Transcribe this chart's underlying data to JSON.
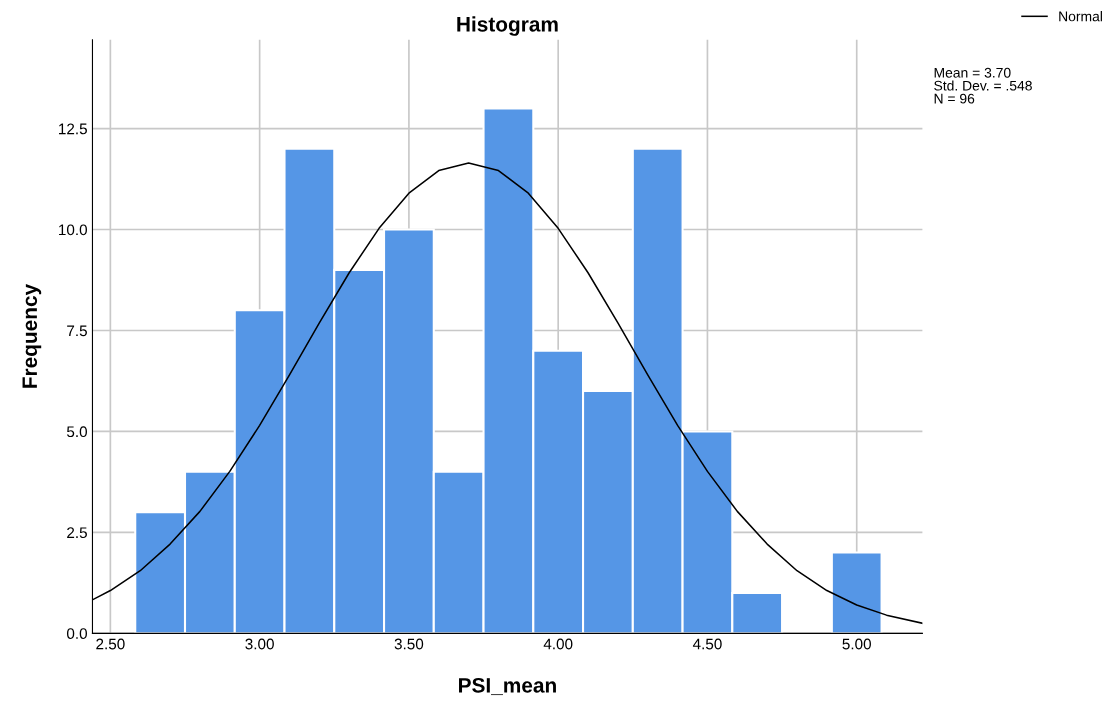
{
  "chart_data": {
    "type": "histogram",
    "title": "Histogram",
    "xlabel": "PSI_mean",
    "ylabel": "Frequency",
    "bins": [
      2.5833,
      2.75,
      2.9167,
      3.0833,
      3.25,
      3.4167,
      3.5833,
      3.75,
      3.9167,
      4.0833,
      4.25,
      4.4167,
      4.5833,
      4.75,
      4.9167,
      5.0833
    ],
    "values": [
      3,
      4,
      8,
      12,
      9,
      10,
      4,
      13,
      7,
      6,
      12,
      5,
      1,
      0,
      2
    ],
    "color": "#5596e6",
    "series": [
      {
        "name": "Normal",
        "type": "line",
        "color": "#000000",
        "x": [
          2.44,
          2.5,
          2.6,
          2.7,
          2.8,
          2.9,
          3.0,
          3.1,
          3.2,
          3.3,
          3.4,
          3.5,
          3.6,
          3.7,
          3.8,
          3.9,
          4.0,
          4.1,
          4.2,
          4.3,
          4.4,
          4.5,
          4.6,
          4.7,
          4.8,
          4.9,
          5.0,
          5.1,
          5.22
        ],
        "values": [
          0.83,
          1.06,
          1.55,
          2.21,
          3.02,
          4.01,
          5.15,
          6.4,
          7.69,
          8.93,
          10.03,
          10.9,
          11.46,
          11.65,
          11.46,
          10.9,
          10.03,
          8.93,
          7.69,
          6.4,
          5.15,
          4.01,
          3.02,
          2.21,
          1.55,
          1.06,
          0.7,
          0.45,
          0.25
        ]
      }
    ],
    "xlim": [
      2.44,
      5.22
    ],
    "ylim": [
      0,
      14.7
    ],
    "xticks": [
      {
        "value": 2.5,
        "label": "2.50"
      },
      {
        "value": 3.0,
        "label": "3.00"
      },
      {
        "value": 3.5,
        "label": "3.50"
      },
      {
        "value": 4.0,
        "label": "4.00"
      },
      {
        "value": 4.5,
        "label": "4.50"
      },
      {
        "value": 5.0,
        "label": "5.00"
      }
    ],
    "yticks": [
      {
        "value": 0,
        "label": "0.0"
      },
      {
        "value": 2.5,
        "label": "2.5"
      },
      {
        "value": 5,
        "label": "5.0"
      },
      {
        "value": 7.5,
        "label": "7.5"
      },
      {
        "value": 10,
        "label": "10.0"
      },
      {
        "value": 12.5,
        "label": "12.5"
      }
    ],
    "grid": true,
    "legend": "top right",
    "annotations": [
      "Mean = 3.70",
      "Std. Dev. = .548",
      "N = 96"
    ]
  }
}
